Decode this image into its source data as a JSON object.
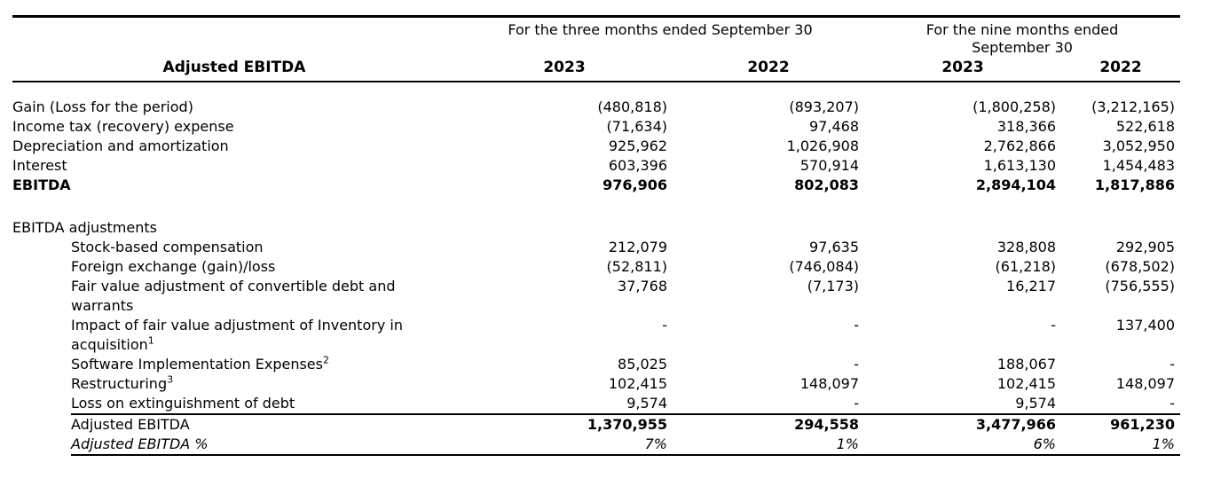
{
  "table": {
    "title": "Adjusted EBITDA",
    "group_headers": [
      {
        "label": "For the three months ended September 30"
      },
      {
        "label": "For the nine months ended\nSeptember 30"
      }
    ],
    "year_headers": [
      "2023",
      "2022",
      "2023",
      "2022"
    ],
    "rows": [
      {
        "label": "Gain (Loss for the period)",
        "spacer_before": 18,
        "values": [
          "(480,818)",
          "(893,207)",
          "(1,800,258)",
          "(3,212,165)"
        ]
      },
      {
        "label": "Income tax (recovery) expense",
        "values": [
          "(71,634)",
          "97,468",
          "318,366",
          "522,618"
        ]
      },
      {
        "label": "Depreciation and amortization",
        "values": [
          "925,962",
          "1,026,908",
          "2,762,866",
          "3,052,950"
        ]
      },
      {
        "label": "Interest",
        "values": [
          "603,396",
          "570,914",
          "1,613,130",
          "1,454,483"
        ]
      },
      {
        "label": "EBITDA",
        "bold": true,
        "values": [
          "976,906",
          "802,083",
          "2,894,104",
          "1,817,886"
        ]
      },
      {
        "label": "EBITDA adjustments",
        "spacer_before": 26
      },
      {
        "label": "Stock-based compensation",
        "indent": true,
        "values": [
          "212,079",
          "97,635",
          "328,808",
          "292,905"
        ]
      },
      {
        "label": "Foreign exchange (gain)/loss",
        "indent": true,
        "values": [
          "(52,811)",
          "(746,084)",
          "(61,218)",
          "(678,502)"
        ]
      },
      {
        "label": "Fair value adjustment of convertible debt and\nwarrants",
        "indent": true,
        "values": [
          "37,768",
          "(7,173)",
          "16,217",
          "(756,555)"
        ]
      },
      {
        "label": "Impact of fair value adjustment of Inventory in\nacquisition",
        "sup": "1",
        "indent": true,
        "values": [
          "-",
          "-",
          "-",
          "137,400"
        ]
      },
      {
        "label": "Software Implementation Expenses",
        "sup": "2",
        "indent": true,
        "values": [
          "85,025",
          "-",
          "188,067",
          "-"
        ]
      },
      {
        "label": "Restructuring",
        "sup": "3",
        "indent": true,
        "values": [
          "102,415",
          "148,097",
          "102,415",
          "148,097"
        ]
      },
      {
        "label": "Loss on extinguishment of debt",
        "indent": true,
        "rule_after": true,
        "values": [
          "9,574",
          "-",
          "9,574",
          "-"
        ]
      },
      {
        "label": "Adjusted EBITDA",
        "indent": true,
        "values_bold": true,
        "values": [
          "1,370,955",
          "294,558",
          "3,477,966",
          "961,230"
        ]
      },
      {
        "label": "Adjusted EBITDA %",
        "indent": true,
        "italic": true,
        "rule_after": true,
        "values": [
          "7%",
          "1%",
          "6%",
          "1%"
        ]
      }
    ]
  }
}
